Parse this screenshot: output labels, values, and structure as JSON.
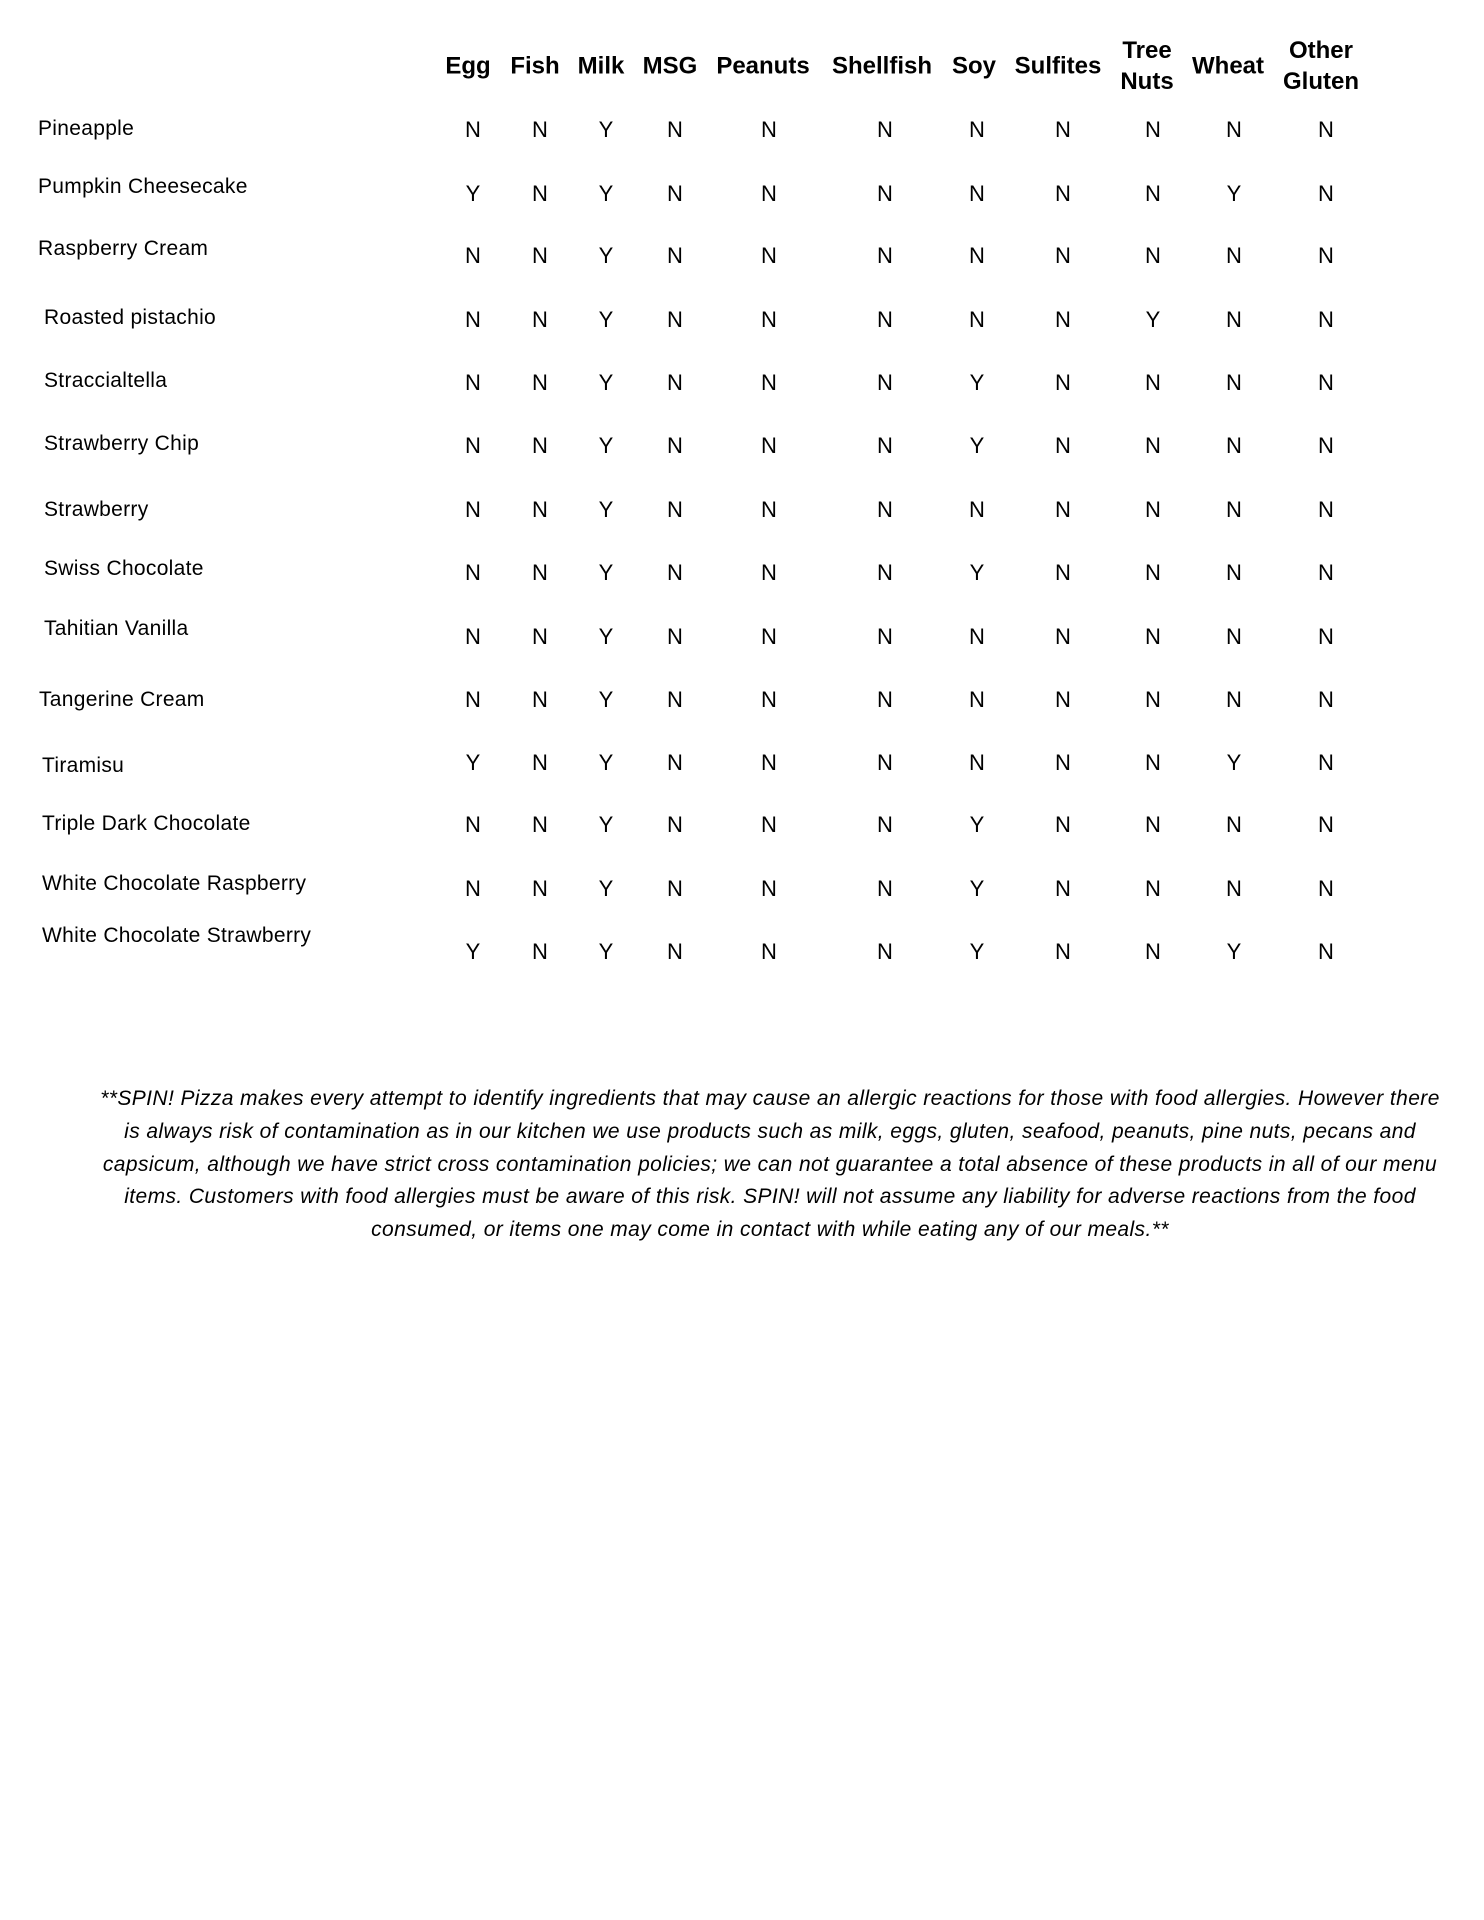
{
  "columns": [
    "Egg",
    "Fish",
    "Milk",
    "MSG",
    "Peanuts",
    "Shellfish",
    "Soy",
    "Sulfites",
    "Tree\nNuts",
    "Wheat",
    "Other\nGluten"
  ],
  "rows": [
    {
      "name": "Pineapple",
      "values": [
        "N",
        "N",
        "Y",
        "N",
        "N",
        "N",
        "N",
        "N",
        "N",
        "N",
        "N"
      ]
    },
    {
      "name": "Pumpkin Cheesecake",
      "values": [
        "Y",
        "N",
        "Y",
        "N",
        "N",
        "N",
        "N",
        "N",
        "N",
        "Y",
        "N"
      ]
    },
    {
      "name": "Raspberry Cream",
      "values": [
        "N",
        "N",
        "Y",
        "N",
        "N",
        "N",
        "N",
        "N",
        "N",
        "N",
        "N"
      ]
    },
    {
      "name": "Roasted pistachio",
      "values": [
        "N",
        "N",
        "Y",
        "N",
        "N",
        "N",
        "N",
        "N",
        "Y",
        "N",
        "N"
      ]
    },
    {
      "name": "Straccialtella",
      "values": [
        "N",
        "N",
        "Y",
        "N",
        "N",
        "N",
        "Y",
        "N",
        "N",
        "N",
        "N"
      ]
    },
    {
      "name": "Strawberry Chip",
      "values": [
        "N",
        "N",
        "Y",
        "N",
        "N",
        "N",
        "Y",
        "N",
        "N",
        "N",
        "N"
      ]
    },
    {
      "name": "Strawberry",
      "values": [
        "N",
        "N",
        "Y",
        "N",
        "N",
        "N",
        "N",
        "N",
        "N",
        "N",
        "N"
      ]
    },
    {
      "name": "Swiss Chocolate",
      "values": [
        "N",
        "N",
        "Y",
        "N",
        "N",
        "N",
        "Y",
        "N",
        "N",
        "N",
        "N"
      ]
    },
    {
      "name": "Tahitian Vanilla",
      "values": [
        "N",
        "N",
        "Y",
        "N",
        "N",
        "N",
        "N",
        "N",
        "N",
        "N",
        "N"
      ]
    },
    {
      "name": "Tangerine Cream",
      "values": [
        "N",
        "N",
        "Y",
        "N",
        "N",
        "N",
        "N",
        "N",
        "N",
        "N",
        "N"
      ]
    },
    {
      "name": "Tiramisu",
      "values": [
        "Y",
        "N",
        "Y",
        "N",
        "N",
        "N",
        "N",
        "N",
        "N",
        "Y",
        "N"
      ]
    },
    {
      "name": "Triple Dark Chocolate",
      "values": [
        "N",
        "N",
        "Y",
        "N",
        "N",
        "N",
        "Y",
        "N",
        "N",
        "N",
        "N"
      ]
    },
    {
      "name": "White Chocolate Raspberry",
      "values": [
        "N",
        "N",
        "Y",
        "N",
        "N",
        "N",
        "Y",
        "N",
        "N",
        "N",
        "N"
      ]
    },
    {
      "name": "White Chocolate Strawberry",
      "values": [
        "Y",
        "N",
        "Y",
        "N",
        "N",
        "N",
        "Y",
        "N",
        "N",
        "Y",
        "N"
      ]
    }
  ],
  "disclaimer": "**SPIN! Pizza makes every attempt to identify ingredients that may cause an allergic reactions for those with food allergies. However there is always risk of contamination as in our kitchen we use products such as milk, eggs, gluten, seafood, peanuts, pine nuts, pecans and capsicum, although we have strict cross contamination policies; we can not guarantee a total absence of these products in all of our menu items. Customers with food allergies must be aware of this risk. SPIN! will not assume any liability for adverse reactions from the food consumed, or items one may come in contact with while eating any of our meals.**"
}
